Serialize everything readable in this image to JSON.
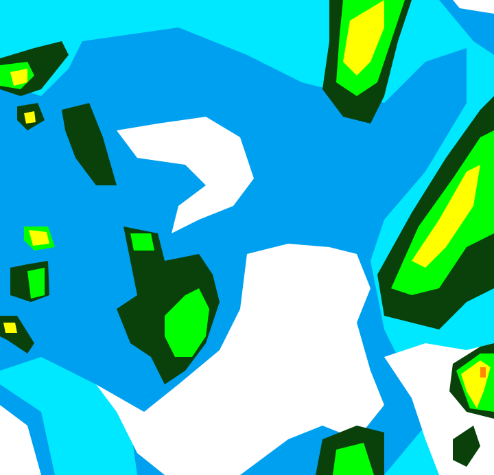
{
  "map": {
    "type": "radar-reflectivity",
    "palette": {
      "none": "#ffffff",
      "level1": "#00e8ff",
      "level2": "#00a0f0",
      "level3": "#0a400a",
      "level4": "#00ff00",
      "level5": "#ffff00",
      "level6": "#ff8800"
    }
  }
}
